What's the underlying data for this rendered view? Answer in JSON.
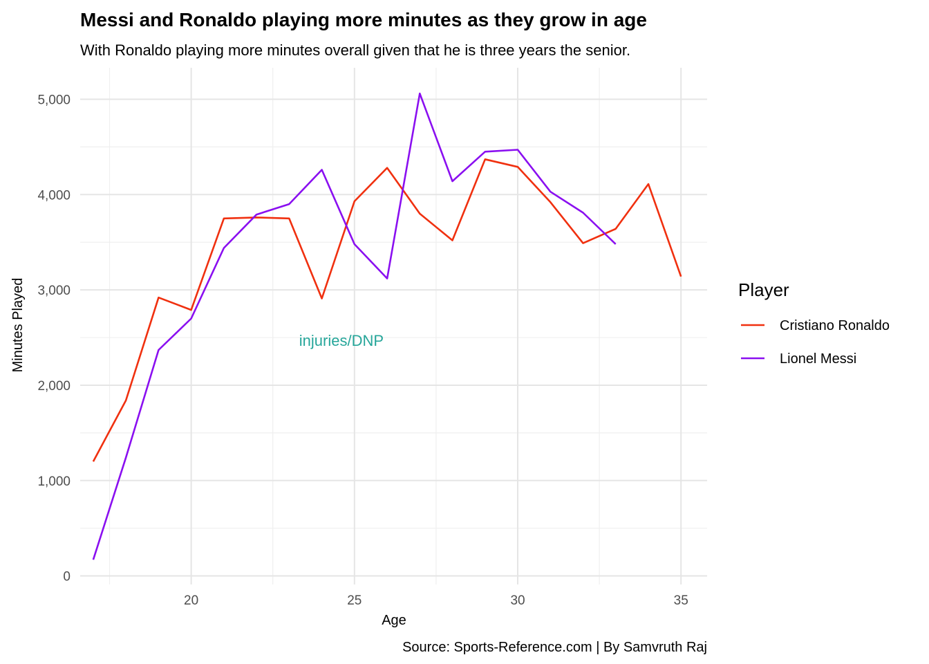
{
  "chart_data": {
    "type": "line",
    "title": "Messi and Ronaldo playing more minutes as they grow in age",
    "subtitle": "With Ronaldo playing more minutes overall given that he is three years the senior.",
    "xlabel": "Age",
    "ylabel": "Minutes Played",
    "caption": "Source: Sports-Reference.com | By Samvruth Raj",
    "xlim": [
      16.6,
      35.8
    ],
    "ylim": [
      -90,
      5330
    ],
    "x_ticks": [
      20,
      25,
      30,
      35
    ],
    "x_tick_labels": [
      "20",
      "25",
      "30",
      "35"
    ],
    "y_ticks": [
      0,
      1000,
      2000,
      3000,
      4000,
      5000
    ],
    "y_tick_labels": [
      "0",
      "1,000",
      "2,000",
      "3,000",
      "4,000",
      "5,000"
    ],
    "grid": true,
    "legend": {
      "title": "Player",
      "position": "right"
    },
    "annotation": {
      "text": "injuries/DNP",
      "x": 24.6,
      "y": 2470,
      "color": "#26a69a"
    },
    "series": [
      {
        "name": "Cristiano Ronaldo",
        "color": "#f0300f",
        "x": [
          17,
          18,
          19,
          20,
          21,
          22,
          23,
          24,
          25,
          26,
          27,
          28,
          29,
          30,
          31,
          32,
          33,
          34,
          35
        ],
        "values": [
          1200,
          1840,
          2920,
          2790,
          3750,
          3760,
          3750,
          2910,
          3930,
          4280,
          3800,
          3520,
          4370,
          4290,
          3920,
          3490,
          3640,
          4110,
          3140
        ]
      },
      {
        "name": "Lionel Messi",
        "color": "#8a0ff0",
        "x": [
          17,
          18,
          19,
          20,
          21,
          22,
          23,
          24,
          25,
          26,
          27,
          28,
          29,
          30,
          31,
          32,
          33
        ],
        "values": [
          170,
          1240,
          2370,
          2700,
          3440,
          3790,
          3900,
          4260,
          3480,
          3120,
          5060,
          4140,
          4450,
          4470,
          4030,
          3810,
          3480
        ]
      }
    ]
  }
}
